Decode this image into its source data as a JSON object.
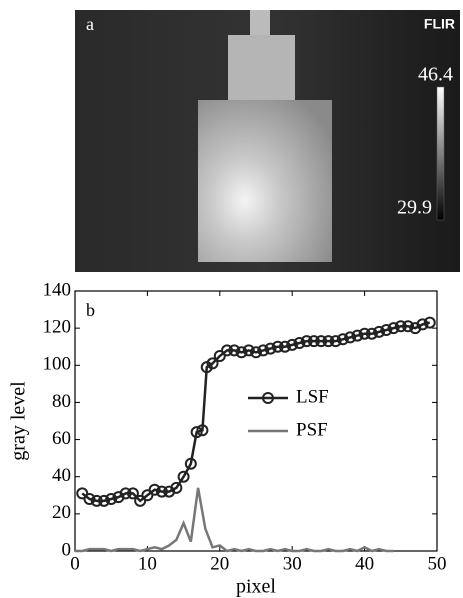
{
  "image": {
    "label": "a",
    "logo": "FLIR",
    "scale_max": "46.4",
    "scale_min": "29.9"
  },
  "chart_data": {
    "type": "line",
    "panel_label": "b",
    "x_label": "pixel",
    "y_label": "gray level",
    "xlim": [
      0,
      50
    ],
    "xticks": [
      0,
      10,
      20,
      30,
      40,
      50
    ],
    "ylim": [
      0,
      140
    ],
    "yticks": [
      0,
      20,
      40,
      60,
      80,
      100,
      120,
      140
    ],
    "legend": "center-right",
    "series": [
      {
        "name": "LSF",
        "color": "#222222",
        "marker": "circle",
        "x": [
          1,
          2,
          3,
          4,
          5,
          6,
          7,
          8,
          9,
          10,
          11,
          12,
          13,
          14,
          15,
          16,
          16.8,
          17.6,
          18.2,
          19,
          20,
          21,
          22,
          23,
          24,
          25,
          26,
          27,
          28,
          29,
          30,
          31,
          32,
          33,
          34,
          35,
          36,
          37,
          38,
          39,
          40,
          41,
          42,
          43,
          44,
          45,
          46,
          47,
          48,
          49
        ],
        "values": [
          31,
          28,
          27,
          27,
          28,
          29,
          31,
          31,
          27,
          30,
          33,
          32,
          32,
          34,
          40,
          47,
          64,
          65,
          99,
          101,
          105,
          108,
          108,
          107,
          108,
          107,
          108,
          109,
          110,
          110,
          111,
          112,
          113,
          113,
          113,
          113,
          113,
          114,
          115,
          116,
          117,
          117,
          118,
          119,
          120,
          121,
          121,
          120,
          122,
          123
        ]
      },
      {
        "name": "PSF",
        "color": "#777777",
        "marker": "none",
        "x": [
          0,
          1,
          2,
          3,
          4,
          5,
          6,
          7,
          8,
          9,
          10,
          11,
          12,
          13,
          14,
          15,
          16,
          17,
          18,
          19,
          20,
          21,
          22,
          23,
          24,
          25,
          26,
          27,
          28,
          29,
          30,
          31,
          32,
          33,
          34,
          35,
          36,
          37,
          38,
          39,
          40,
          41,
          42,
          43,
          44
        ],
        "values": [
          0,
          0,
          1,
          1,
          1,
          0,
          1,
          1,
          1,
          0,
          1,
          2,
          1,
          3,
          6,
          15,
          5,
          34,
          12,
          2,
          3,
          0,
          1,
          0,
          1,
          0,
          0,
          1,
          0,
          1,
          0,
          0,
          1,
          0,
          0,
          1,
          0,
          0,
          1,
          0,
          2,
          0,
          1,
          0,
          0
        ]
      }
    ]
  }
}
